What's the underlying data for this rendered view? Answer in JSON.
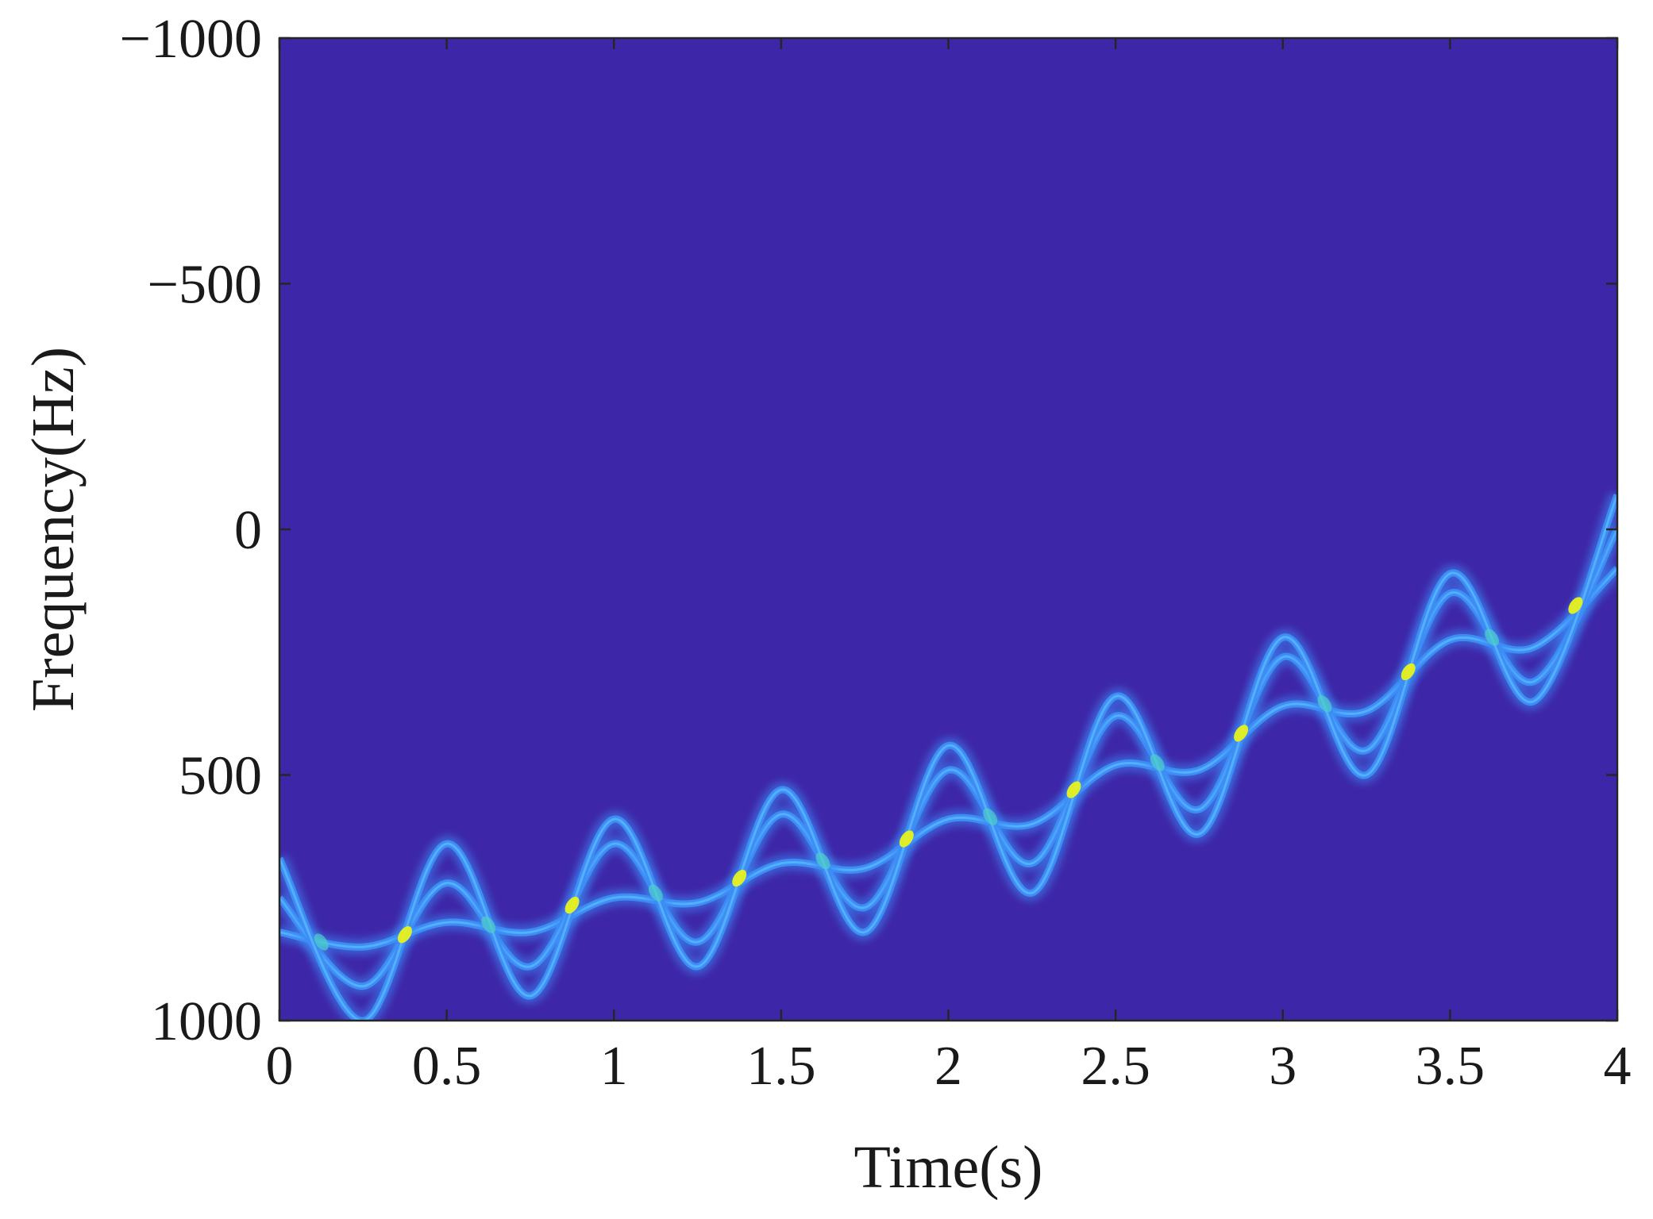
{
  "chart_data": {
    "type": "heatmap",
    "xlabel": "Time(s)",
    "ylabel": "Frequency(Hz)",
    "xlim": [
      0,
      4
    ],
    "ylim": [
      -1000,
      1000
    ],
    "y_axis_reversed": true,
    "x_ticks": [
      "0",
      "0.5",
      "1",
      "1.5",
      "2",
      "2.5",
      "3",
      "3.5",
      "4"
    ],
    "x_tick_values": [
      0,
      0.5,
      1,
      1.5,
      2,
      2.5,
      3,
      3.5,
      4
    ],
    "y_ticks": [
      "−1000",
      "−500",
      "0",
      "500",
      "1000"
    ],
    "y_tick_values": [
      -1000,
      -500,
      0,
      500,
      1000
    ],
    "colormap": "parula",
    "background_color": "#3e26a8",
    "ridge_color": "#3d8df5",
    "ridge_core_color": "#5ab8ff",
    "crossing_color": "#e8f21e",
    "series": [
      {
        "x": [
          0,
          0.25,
          0.5,
          0.75,
          1,
          1.25,
          1.5,
          1.75,
          2,
          2.25,
          2.5,
          2.75,
          3,
          3.25,
          3.5,
          3.75,
          4
        ],
        "y": [
          820,
          850,
          800,
          820,
          750,
          760,
          680,
          690,
          590,
          600,
          480,
          490,
          360,
          370,
          225,
          240,
          80
        ]
      },
      {
        "x": [
          0,
          0.25,
          0.5,
          0.75,
          1,
          1.25,
          1.5,
          1.75,
          2,
          2.25,
          2.5,
          2.75,
          3,
          3.25,
          3.5,
          3.75,
          4
        ],
        "y": [
          750,
          930,
          720,
          890,
          640,
          840,
          580,
          770,
          490,
          680,
          380,
          570,
          260,
          450,
          130,
          310,
          0
        ]
      },
      {
        "x": [
          0,
          0.25,
          0.5,
          0.75,
          1,
          1.25,
          1.5,
          1.75,
          2,
          2.25,
          2.5,
          2.75,
          3,
          3.25,
          3.5,
          3.75,
          4
        ],
        "y": [
          670,
          1000,
          640,
          950,
          590,
          890,
          530,
          820,
          440,
          740,
          340,
          620,
          220,
          500,
          90,
          350,
          -70
        ]
      }
    ]
  }
}
